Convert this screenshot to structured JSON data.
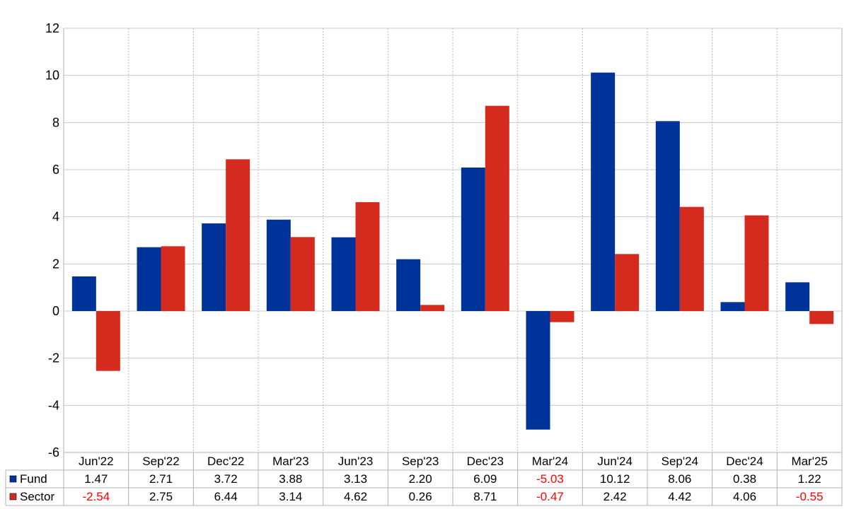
{
  "chart_data": {
    "type": "bar",
    "categories": [
      "Jun'22",
      "Sep'22",
      "Dec'22",
      "Mar'23",
      "Jun'23",
      "Sep'23",
      "Dec'23",
      "Mar'24",
      "Jun'24",
      "Sep'24",
      "Dec'24",
      "Mar'25"
    ],
    "series": [
      {
        "name": "Fund",
        "color": "#003399",
        "values": [
          1.47,
          2.71,
          3.72,
          3.88,
          3.13,
          2.2,
          6.09,
          -5.03,
          10.12,
          8.06,
          0.38,
          1.22
        ],
        "labels": [
          "1.47",
          "2.71",
          "3.72",
          "3.88",
          "3.13",
          "2.20",
          "6.09",
          "-5.03",
          "10.12",
          "8.06",
          "0.38",
          "1.22"
        ]
      },
      {
        "name": "Sector",
        "color": "#d52b1e",
        "values": [
          -2.54,
          2.75,
          6.44,
          3.14,
          4.62,
          0.26,
          8.71,
          -0.47,
          2.42,
          4.42,
          4.06,
          -0.55
        ],
        "labels": [
          "-2.54",
          "2.75",
          "6.44",
          "3.14",
          "4.62",
          "0.26",
          "8.71",
          "-0.47",
          "2.42",
          "4.42",
          "4.06",
          "-0.55"
        ]
      }
    ],
    "ylim": [
      -6,
      12
    ],
    "yticks": [
      "-6",
      "-4",
      "-2",
      "0",
      "2",
      "4",
      "6",
      "8",
      "10",
      "12"
    ],
    "negative_value_color": "#ff0000",
    "grid": true,
    "legend": "data-table-left"
  }
}
